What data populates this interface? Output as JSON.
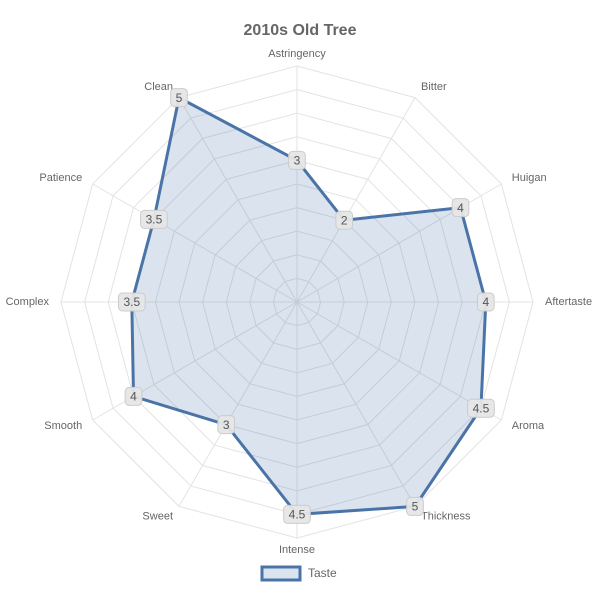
{
  "chart_data": {
    "type": "radar",
    "title": "2010s Old Tree",
    "categories": [
      "Astringency",
      "Bitter",
      "Huigan",
      "Aftertaste",
      "Aroma",
      "Thickness",
      "Intense",
      "Sweet",
      "Smooth",
      "Complex",
      "Patience",
      "Clean"
    ],
    "series": [
      {
        "name": "Taste",
        "color": "#4a74a8",
        "values": [
          3,
          2,
          4,
          4,
          4.5,
          5,
          4.5,
          3,
          4,
          3.5,
          3.5,
          5
        ]
      }
    ],
    "ylim": [
      0,
      5
    ],
    "yticks": [
      0.5,
      1,
      1.5,
      2,
      2.5,
      3,
      3.5,
      4,
      4.5,
      5
    ],
    "grid": true,
    "legend": "bottom"
  }
}
